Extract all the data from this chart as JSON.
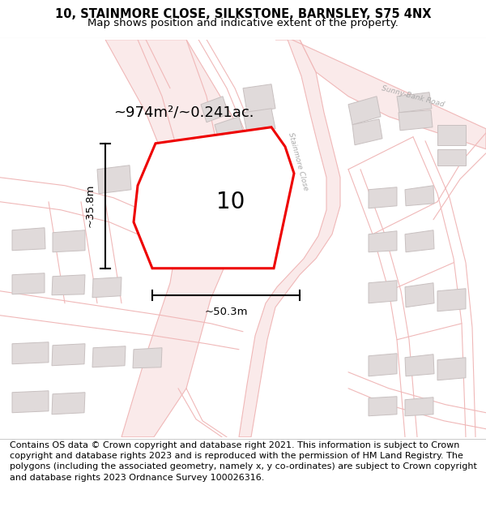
{
  "title_line1": "10, STAINMORE CLOSE, SILKSTONE, BARNSLEY, S75 4NX",
  "title_line2": "Map shows position and indicative extent of the property.",
  "footer_text": "Contains OS data © Crown copyright and database right 2021. This information is subject to Crown copyright and database rights 2023 and is reproduced with the permission of HM Land Registry. The polygons (including the associated geometry, namely x, y co-ordinates) are subject to Crown copyright and database rights 2023 Ordnance Survey 100026316.",
  "area_label": "~974m²/~0.241ac.",
  "width_label": "~50.3m",
  "height_label": "~35.8m",
  "plot_number": "10",
  "map_bg": "#ffffff",
  "road_color": "#f0b8b8",
  "road_fill": "#f5e8e8",
  "building_color": "#e0dada",
  "building_edge": "#c8c0c0",
  "highlight_color": "#ee0000",
  "road_label_color": "#aaaaaa",
  "title_fontsize": 10.5,
  "subtitle_fontsize": 9.5,
  "footer_fontsize": 8.0
}
